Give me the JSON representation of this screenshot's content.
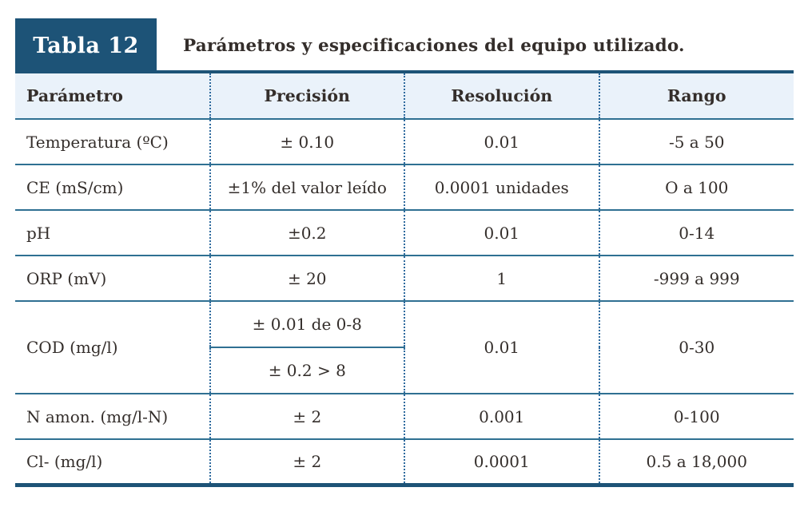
{
  "header": {
    "tab_label": "Tabla 12",
    "title": "Parámetros y especificaciones del equipo utilizado."
  },
  "colors": {
    "navy": "#1d5377",
    "row_line": "#2f7092",
    "column_dotted": "#2e6a9e",
    "header_background": "#eaf2fa",
    "text": "#342e2b"
  },
  "table": {
    "columns": [
      "Parámetro",
      "Precisión",
      "Resolución",
      "Rango"
    ],
    "rows": [
      {
        "param": "Temperatura (ºC)",
        "precision": "± 0.10",
        "resolution": "0.01",
        "range": "-5 a 50"
      },
      {
        "param": "CE (mS/cm)",
        "precision": "±1% del valor leído",
        "resolution": "0.0001 unidades",
        "range": "O a 100"
      },
      {
        "param": "pH",
        "precision": "±0.2",
        "resolution": "0.01",
        "range": "0-14"
      },
      {
        "param": "ORP (mV)",
        "precision": "± 20",
        "resolution": "1",
        "range": "-999 a 999"
      },
      {
        "param": "COD (mg/l)",
        "precision_top": "± 0.01 de 0-8",
        "precision_bottom": "± 0.2 > 8",
        "resolution": "0.01",
        "range": "0-30"
      },
      {
        "param": "N amon. (mg/l-N)",
        "precision": "± 2",
        "resolution": "0.001",
        "range": "0-100"
      },
      {
        "param": "Cl- (mg/l)",
        "precision": "± 2",
        "resolution": "0.0001",
        "range": "0.5 a 18,000"
      }
    ]
  }
}
